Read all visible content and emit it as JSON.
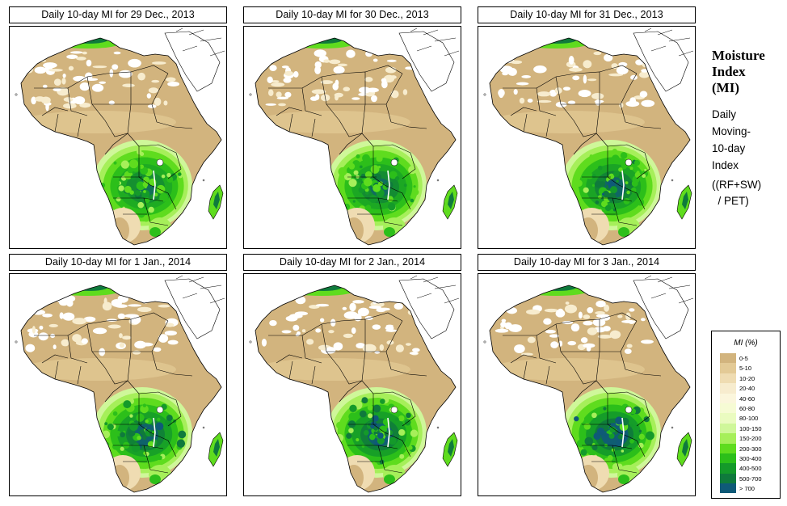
{
  "panels": [
    {
      "title": "Daily 10-day MI for  29 Dec., 2013",
      "wetness": 0.55
    },
    {
      "title": "Daily 10-day MI for  30 Dec., 2013",
      "wetness": 0.62
    },
    {
      "title": "Daily 10-day MI for  31 Dec., 2013",
      "wetness": 0.72
    },
    {
      "title": "Daily 10-day MI for  1 Jan., 2014",
      "wetness": 0.8
    },
    {
      "title": "Daily 10-day MI for  2 Jan., 2014",
      "wetness": 0.85
    },
    {
      "title": "Daily 10-day MI for  3 Jan., 2014",
      "wetness": 0.92
    }
  ],
  "sidebar": {
    "title_lines": [
      "Moisture",
      "Index",
      "(MI)"
    ],
    "desc_lines": [
      "Daily",
      "Moving-",
      "10-day",
      "Index"
    ],
    "formula_lines": [
      "((RF+SW)",
      "  / PET)"
    ]
  },
  "legend": {
    "title": "MI (%)",
    "items": [
      {
        "label": "0-5",
        "color": "#d2b47e"
      },
      {
        "label": "5-10",
        "color": "#e3ca96"
      },
      {
        "label": "10-20",
        "color": "#efdcb2"
      },
      {
        "label": "20-40",
        "color": "#f7ecce"
      },
      {
        "label": "40-60",
        "color": "#fbf6dc"
      },
      {
        "label": "60-80",
        "color": "#f6fbd4"
      },
      {
        "label": "80-100",
        "color": "#eafbc0"
      },
      {
        "label": "100-150",
        "color": "#cff79a"
      },
      {
        "label": "150-200",
        "color": "#a6ef5a"
      },
      {
        "label": "200-300",
        "color": "#5fdc1e"
      },
      {
        "label": "300-400",
        "color": "#2cbf1a"
      },
      {
        "label": "400-500",
        "color": "#149a2a"
      },
      {
        "label": "500-700",
        "color": "#0f7a3c"
      },
      {
        "label": "> 700",
        "color": "#0f5a78"
      }
    ]
  }
}
